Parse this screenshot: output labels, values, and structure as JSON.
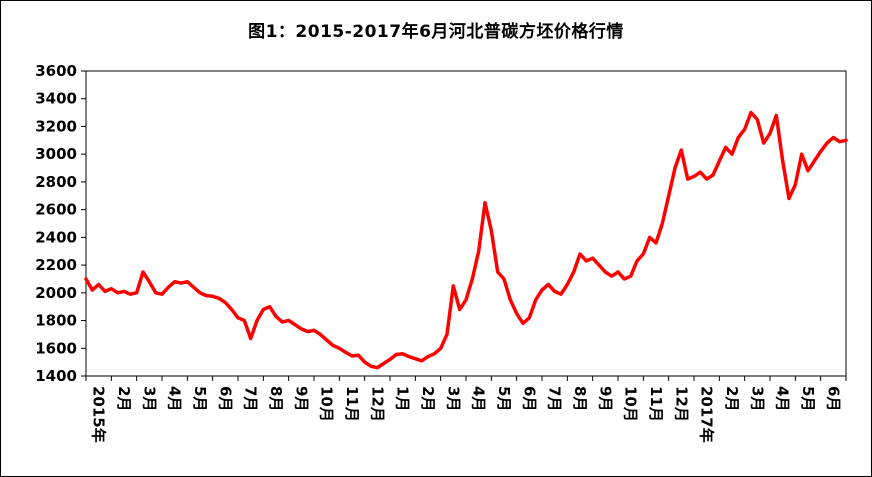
{
  "chart_data": {
    "type": "line",
    "title": "图1：2015-2017年6月河北普碳方坯价格行情",
    "ylim": [
      1400,
      3600
    ],
    "y_ticks": [
      1400,
      1600,
      1800,
      2000,
      2200,
      2400,
      2600,
      2800,
      3000,
      3200,
      3400,
      3600
    ],
    "x_labels": [
      "2015年",
      "2月",
      "3月",
      "4月",
      "5月",
      "6月",
      "7月",
      "8月",
      "9月",
      "10月",
      "11月",
      "12月",
      "1月",
      "2月",
      "3月",
      "4月",
      "5月",
      "6月",
      "7月",
      "8月",
      "9月",
      "10月",
      "11月",
      "12月",
      "2017年",
      "2月",
      "3月",
      "4月",
      "5月",
      "6月"
    ],
    "grid": false,
    "legend": "none",
    "line_color": "#FF0000",
    "line_width": 3.5,
    "points_per_month": 4,
    "values": [
      2100,
      2020,
      2060,
      2010,
      2030,
      2000,
      2010,
      1990,
      2000,
      2150,
      2080,
      2000,
      1990,
      2040,
      2080,
      2070,
      2080,
      2040,
      2000,
      1980,
      1975,
      1960,
      1930,
      1880,
      1820,
      1800,
      1670,
      1800,
      1880,
      1900,
      1830,
      1790,
      1800,
      1770,
      1740,
      1720,
      1730,
      1700,
      1660,
      1620,
      1600,
      1570,
      1545,
      1550,
      1500,
      1470,
      1460,
      1490,
      1520,
      1555,
      1560,
      1540,
      1525,
      1510,
      1540,
      1560,
      1600,
      1700,
      2050,
      1880,
      1950,
      2100,
      2300,
      2650,
      2450,
      2150,
      2100,
      1950,
      1850,
      1780,
      1820,
      1950,
      2020,
      2060,
      2010,
      1990,
      2060,
      2150,
      2280,
      2230,
      2250,
      2200,
      2150,
      2120,
      2150,
      2100,
      2120,
      2230,
      2280,
      2400,
      2360,
      2500,
      2700,
      2900,
      3030,
      2820,
      2840,
      2870,
      2820,
      2850,
      2950,
      3050,
      3000,
      3120,
      3180,
      3300,
      3250,
      3080,
      3150,
      3280,
      2950,
      2680,
      2780,
      3000,
      2880,
      2950,
      3020,
      3080,
      3120,
      3090,
      3100
    ]
  }
}
